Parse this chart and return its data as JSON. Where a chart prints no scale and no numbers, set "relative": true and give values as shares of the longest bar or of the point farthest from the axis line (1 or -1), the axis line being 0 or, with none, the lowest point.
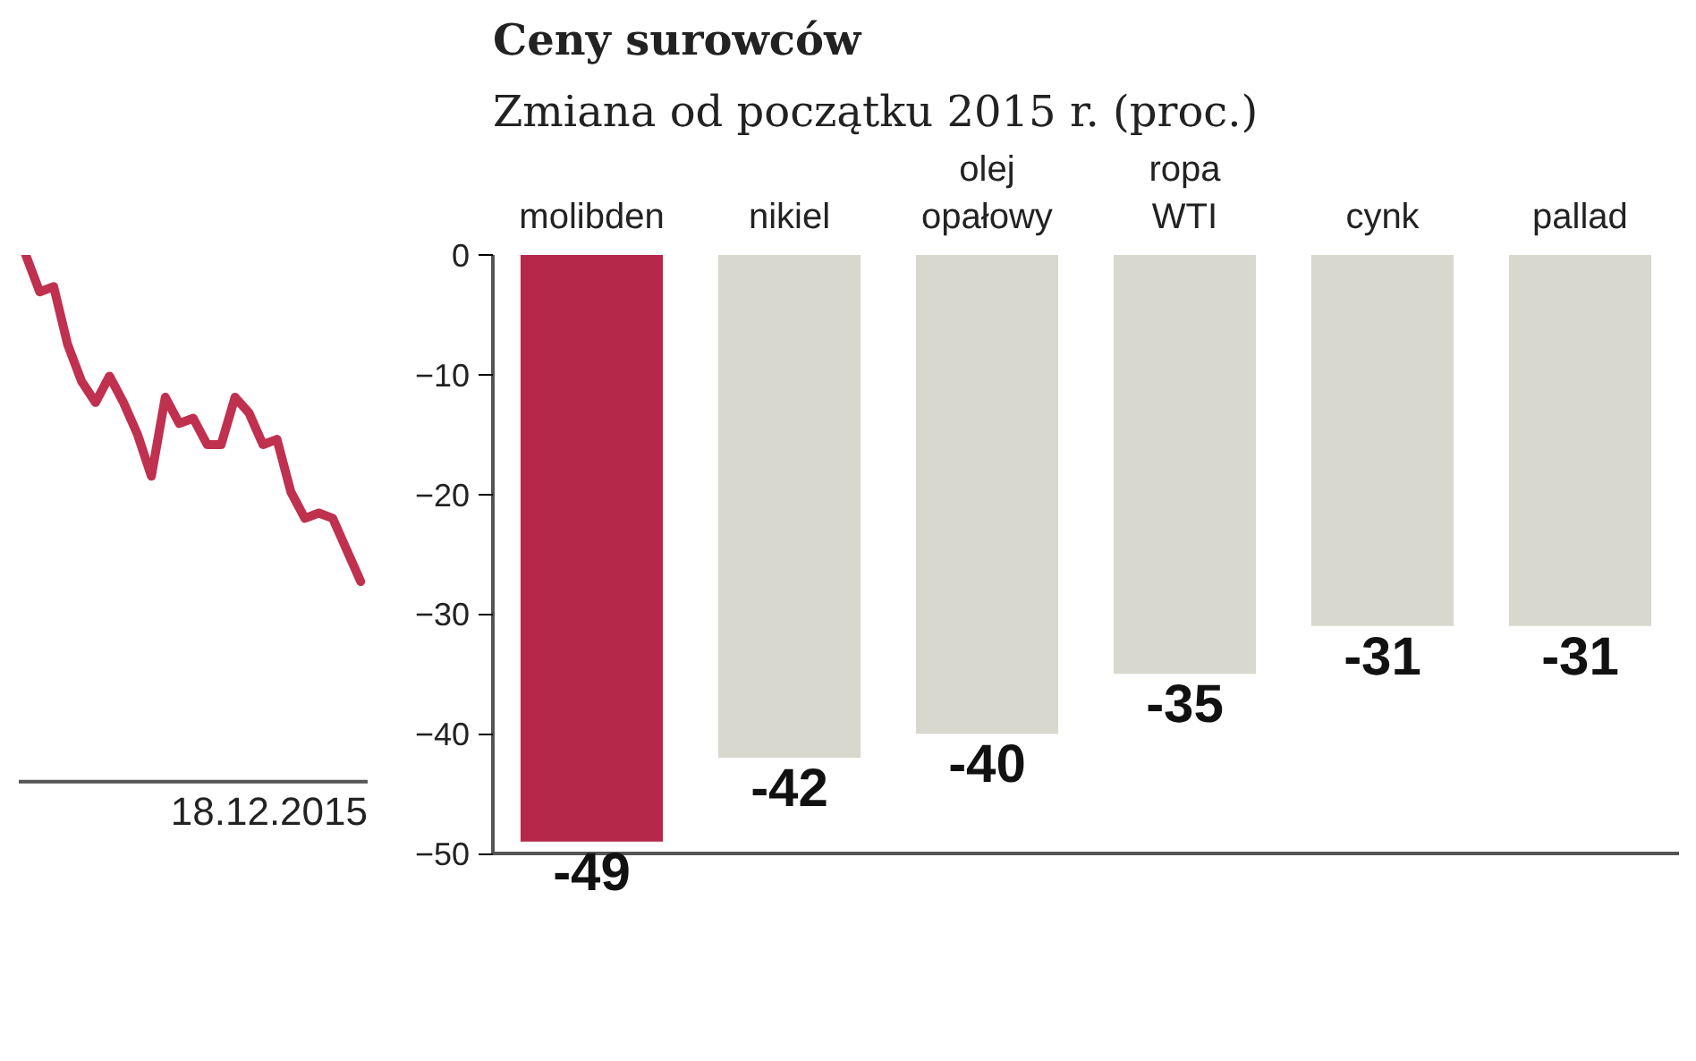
{
  "chart_data": [
    {
      "type": "line",
      "relative": true,
      "categories": [
        null,
        null,
        null,
        null,
        null,
        null,
        null,
        null,
        null,
        null,
        null,
        null,
        null,
        null,
        null,
        null,
        null,
        null,
        null,
        null,
        null,
        null,
        null,
        null,
        null
      ],
      "series": [
        {
          "color": "#c0304f",
          "values": [
            1.0,
            0.93,
            0.94,
            0.83,
            0.76,
            0.72,
            0.77,
            0.72,
            0.66,
            0.58,
            0.73,
            0.68,
            0.69,
            0.64,
            0.64,
            0.73,
            0.7,
            0.64,
            0.65,
            0.55,
            0.5,
            0.51,
            0.5,
            0.44,
            0.38
          ]
        }
      ],
      "annotations": [
        "18.12.2015"
      ]
    },
    {
      "type": "bar",
      "title": "Ceny surowców",
      "subtitle": "Zmiana od początku 2015 r. (proc.)",
      "categories": [
        "molibden",
        "nikiel",
        "olej opałowy",
        "ropa WTI",
        "cynk",
        "pallad"
      ],
      "values": [
        -49,
        -42,
        -40,
        -35,
        -31,
        -31
      ],
      "colors": [
        "#b5284a",
        "#d8d8ce",
        "#d8d8ce",
        "#d8d8ce",
        "#d8d8ce",
        "#d8d8ce"
      ],
      "ylim": [
        -50,
        0
      ],
      "yticks": [
        0,
        -10,
        -20,
        -30,
        -40,
        -50
      ],
      "data_labels": true,
      "grid": false
    }
  ]
}
